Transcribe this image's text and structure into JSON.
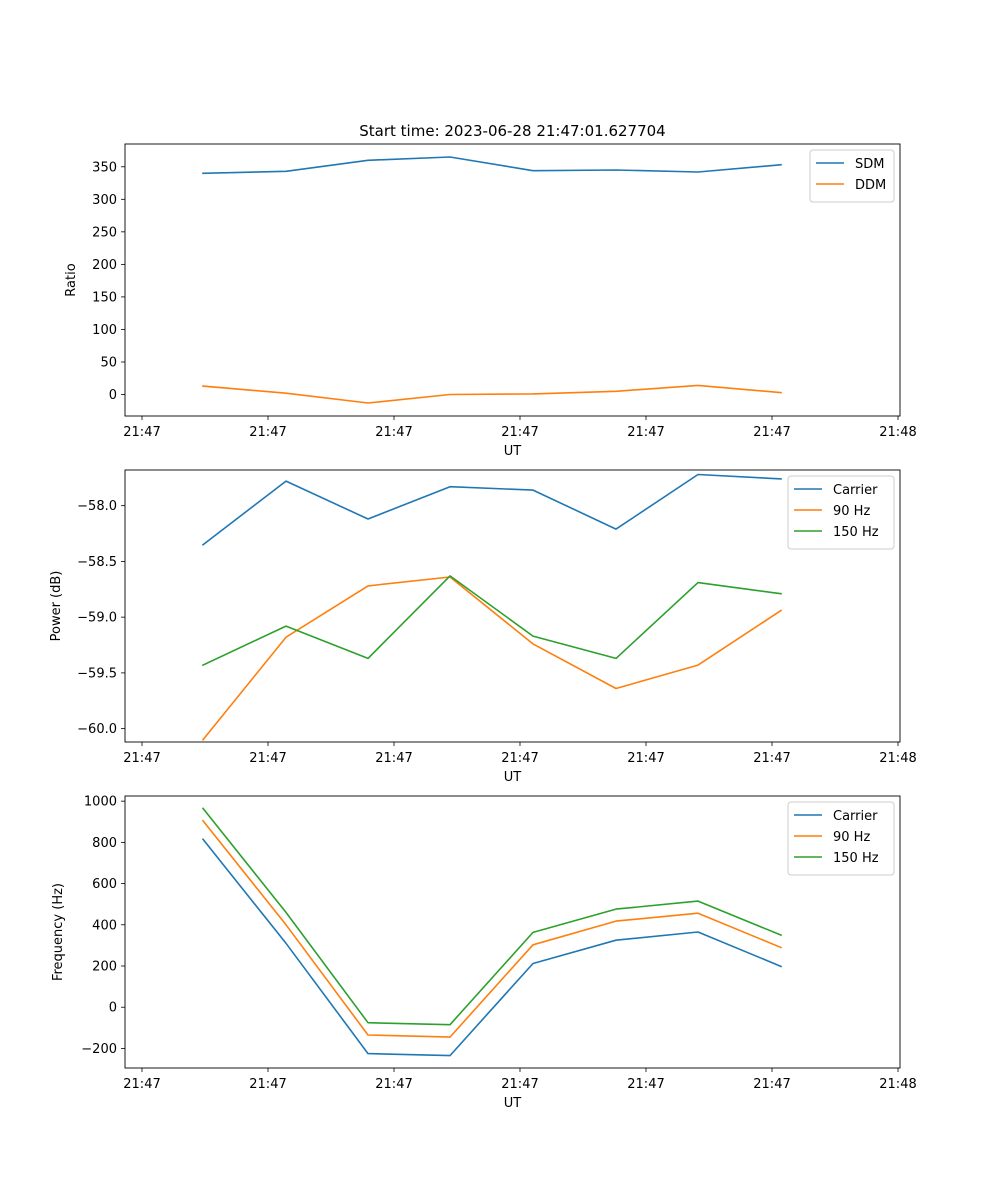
{
  "figure_title": "Start time: 2023-06-28 21:47:01.627704",
  "chart_data": [
    {
      "type": "line",
      "xlabel": "UT",
      "ylabel": "Ratio",
      "x_tick_labels": [
        "21:47",
        "21:47",
        "21:47",
        "21:47",
        "21:47",
        "21:47",
        "21:48"
      ],
      "ylim": [
        -33,
        385
      ],
      "y_ticks": [
        0,
        50,
        100,
        150,
        200,
        250,
        300,
        350
      ],
      "y_tick_labels": [
        "0",
        "50",
        "100",
        "150",
        "200",
        "250",
        "300",
        "350"
      ],
      "grid": false,
      "legend": "top-right",
      "series": [
        {
          "name": "SDM",
          "color": "#1f77b4",
          "values": [
            340,
            343,
            360,
            365,
            344,
            345,
            342,
            353
          ]
        },
        {
          "name": "DDM",
          "color": "#ff7f0e",
          "values": [
            13,
            2,
            -13,
            0,
            1,
            5,
            14,
            3
          ]
        }
      ]
    },
    {
      "type": "line",
      "xlabel": "UT",
      "ylabel": "Power (dB)",
      "x_tick_labels": [
        "21:47",
        "21:47",
        "21:47",
        "21:47",
        "21:47",
        "21:47",
        "21:48"
      ],
      "ylim": [
        -60.12,
        -57.68
      ],
      "y_ticks": [
        -60.0,
        -59.5,
        -59.0,
        -58.5,
        -58.0
      ],
      "y_tick_labels": [
        "−60.0",
        "−59.5",
        "−59.0",
        "−58.5",
        "−58.0"
      ],
      "grid": false,
      "legend": "top-right",
      "series": [
        {
          "name": "Carrier",
          "color": "#1f77b4",
          "values": [
            -58.35,
            -57.78,
            -58.12,
            -57.83,
            -57.86,
            -58.21,
            -57.72,
            -57.76
          ]
        },
        {
          "name": "90 Hz",
          "color": "#ff7f0e",
          "values": [
            -60.1,
            -59.18,
            -58.72,
            -58.64,
            -59.24,
            -59.64,
            -59.43,
            -58.94
          ]
        },
        {
          "name": "150 Hz",
          "color": "#2ca02c",
          "values": [
            -59.43,
            -59.08,
            -59.37,
            -58.63,
            -59.17,
            -59.37,
            -58.69,
            -58.79
          ]
        }
      ]
    },
    {
      "type": "line",
      "xlabel": "UT",
      "ylabel": "Frequency (Hz)",
      "x_tick_labels": [
        "21:47",
        "21:47",
        "21:47",
        "21:47",
        "21:47",
        "21:47",
        "21:48"
      ],
      "ylim": [
        -295,
        1025
      ],
      "y_ticks": [
        -200,
        0,
        200,
        400,
        600,
        800,
        1000
      ],
      "y_tick_labels": [
        "−200",
        "0",
        "200",
        "400",
        "600",
        "800",
        "1000"
      ],
      "grid": false,
      "legend": "top-right",
      "series": [
        {
          "name": "Carrier",
          "color": "#1f77b4",
          "values": [
            815,
            310,
            -225,
            -235,
            212,
            325,
            365,
            198
          ]
        },
        {
          "name": "90 Hz",
          "color": "#ff7f0e",
          "values": [
            905,
            400,
            -135,
            -145,
            303,
            418,
            456,
            290
          ]
        },
        {
          "name": "150 Hz",
          "color": "#2ca02c",
          "values": [
            965,
            460,
            -75,
            -85,
            363,
            476,
            515,
            350
          ]
        }
      ]
    }
  ]
}
